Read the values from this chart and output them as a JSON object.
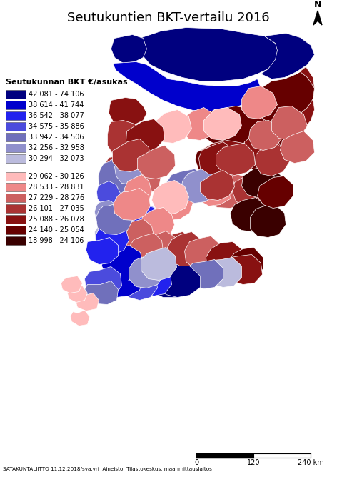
{
  "title": "Seutukuntien BKT-vertailu 2016",
  "legend_title": "Seutukunnan BKT €/asukas",
  "blue_classes": [
    {
      "range": "42 081 - 74 106",
      "color": "#00007F"
    },
    {
      "range": "38 614 - 41 744",
      "color": "#0000CC"
    },
    {
      "range": "36 542 - 38 077",
      "color": "#2222EE"
    },
    {
      "range": "34 575 - 35 886",
      "color": "#4B4BDD"
    },
    {
      "range": "33 942 - 34 506",
      "color": "#7070BB"
    },
    {
      "range": "32 256 - 32 958",
      "color": "#9090CC"
    },
    {
      "range": "30 294 - 32 073",
      "color": "#BBBBDD"
    }
  ],
  "red_classes": [
    {
      "range": "29 062 - 30 126",
      "color": "#FFBBBB"
    },
    {
      "range": "28 533 - 28 831",
      "color": "#EE8888"
    },
    {
      "range": "27 229 - 28 276",
      "color": "#CC6060"
    },
    {
      "range": "26 101 - 27 035",
      "color": "#AA3333"
    },
    {
      "range": "25 088 - 26 078",
      "color": "#881111"
    },
    {
      "range": "24 140 - 25 054",
      "color": "#660000"
    },
    {
      "range": "18 998 - 24 106",
      "color": "#3A0000"
    }
  ],
  "footer": "SATAKUNTALIITTO 11.12.2018/sva.vri  Aineisto: Tilastokeskus, maanmittauslaitos",
  "background_color": "#FFFFFF",
  "fig_width": 4.72,
  "fig_height": 6.68,
  "dpi": 100
}
